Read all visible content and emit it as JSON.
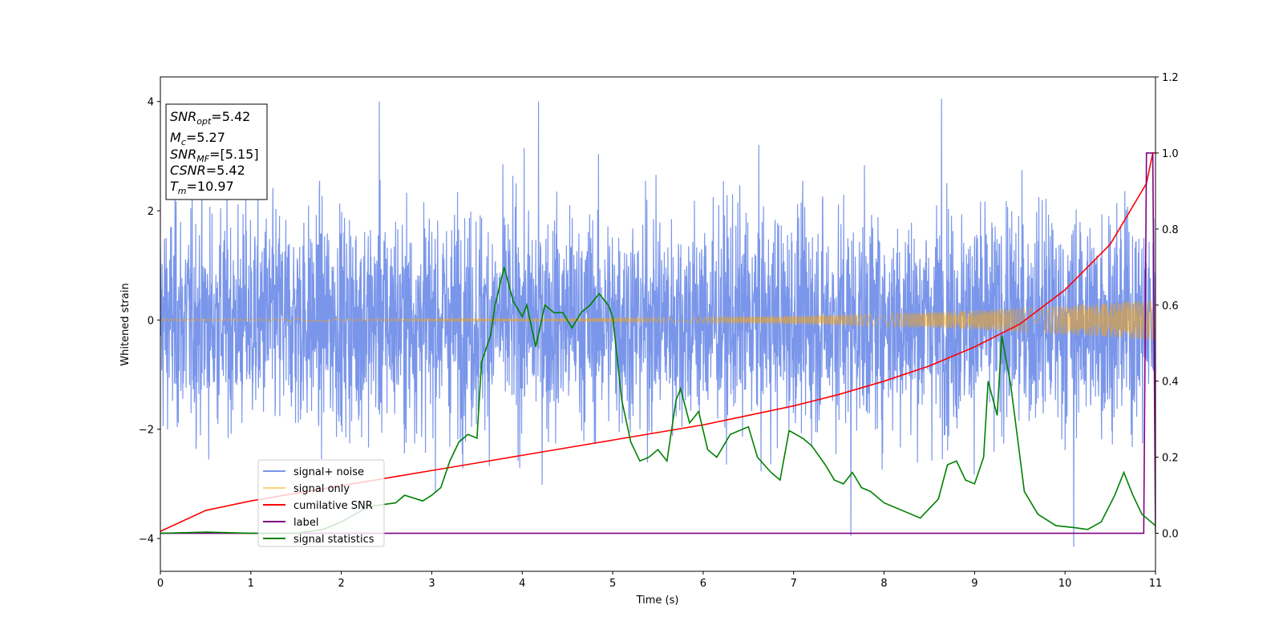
{
  "chart_data": {
    "type": "line",
    "title": "",
    "xlabel": "Time (s)",
    "ylabel": "Whitened strain",
    "xlim": [
      0,
      11
    ],
    "ylim": [
      -4.6,
      4.45
    ],
    "y2lim": [
      -0.1,
      1.2
    ],
    "xticks": [
      0,
      1,
      2,
      3,
      4,
      5,
      6,
      7,
      8,
      9,
      10,
      11
    ],
    "yticks": [
      -4,
      -2,
      0,
      2,
      4
    ],
    "y2ticks": [
      0.0,
      0.2,
      0.4,
      0.6,
      0.8,
      1.0,
      1.2
    ],
    "y2tick_labels": [
      "0.0",
      "0.2",
      "0.4",
      "0.6",
      "0.8",
      "1.0",
      "1.2"
    ],
    "grid": false,
    "legend_position": "lower-left",
    "legend": [
      {
        "name": "signal+ noise",
        "color": "#4169e1",
        "alpha": 0.7
      },
      {
        "name": "signal only",
        "color": "#ffa500",
        "alpha": 0.5
      },
      {
        "name": "cumilative SNR",
        "color": "#ff0000",
        "alpha": 1
      },
      {
        "name": "label",
        "color": "#800080",
        "alpha": 1
      },
      {
        "name": "signal statistics",
        "color": "#008000",
        "alpha": 1
      }
    ],
    "annotation": {
      "snr_opt_base": "SNR",
      "snr_opt_sub": "opt",
      "snr_opt_value": "=5.42",
      "mc_base": "M",
      "mc_sub": "c",
      "mc_value": "=5.27",
      "snr_mf_base": "SNR",
      "snr_mf_sub": "MF",
      "snr_mf_value": "=[5.15]",
      "csnr_base": "CSNR",
      "csnr_value": "=5.42",
      "tm_base": "T",
      "tm_sub": "m",
      "tm_value": "=10.97"
    },
    "series": [
      {
        "name": "signal+ noise",
        "axis": "left",
        "kind": "noise",
        "std": 1.0,
        "t_range": [
          0,
          11
        ],
        "typical_extent": [
          -3.2,
          3.2
        ],
        "peak_values": [
          4.0,
          4.05,
          4.0,
          -3.95,
          -4.15
        ]
      },
      {
        "name": "signal only",
        "axis": "left",
        "kind": "chirp",
        "t_range": [
          0,
          11
        ],
        "amplitude_start": 0.02,
        "amplitude_end": 0.38
      },
      {
        "name": "cumilative SNR",
        "axis": "right",
        "x": [
          0,
          0.5,
          1,
          1.5,
          2,
          2.5,
          3,
          3.5,
          4,
          4.5,
          5,
          5.5,
          6,
          6.5,
          7,
          7.5,
          8,
          8.5,
          9,
          9.5,
          10,
          10.5,
          10.9,
          10.97,
          11
        ],
        "y": [
          0.005,
          0.06,
          0.085,
          0.105,
          0.125,
          0.145,
          0.165,
          0.185,
          0.205,
          0.225,
          0.245,
          0.265,
          0.285,
          0.31,
          0.335,
          0.365,
          0.4,
          0.44,
          0.49,
          0.55,
          0.64,
          0.76,
          0.92,
          1.0,
          1.0
        ]
      },
      {
        "name": "label",
        "axis": "right",
        "x": [
          0,
          10.87,
          10.9,
          10.97,
          11
        ],
        "y": [
          0,
          0,
          1.0,
          1.0,
          0
        ]
      },
      {
        "name": "signal statistics",
        "axis": "right",
        "x": [
          0,
          0.5,
          1,
          1.5,
          1.8,
          2,
          2.3,
          2.6,
          2.7,
          2.9,
          3,
          3.1,
          3.2,
          3.3,
          3.4,
          3.5,
          3.55,
          3.65,
          3.7,
          3.8,
          3.9,
          4.0,
          4.05,
          4.15,
          4.25,
          4.35,
          4.45,
          4.55,
          4.65,
          4.75,
          4.85,
          4.95,
          5.0,
          5.1,
          5.2,
          5.3,
          5.4,
          5.5,
          5.6,
          5.7,
          5.75,
          5.85,
          5.95,
          6.05,
          6.15,
          6.3,
          6.5,
          6.6,
          6.75,
          6.85,
          6.95,
          7.1,
          7.2,
          7.35,
          7.45,
          7.55,
          7.65,
          7.75,
          7.85,
          8.0,
          8.2,
          8.4,
          8.6,
          8.7,
          8.8,
          8.9,
          9.0,
          9.1,
          9.15,
          9.25,
          9.3,
          9.4,
          9.55,
          9.7,
          9.9,
          10.1,
          10.25,
          10.4,
          10.55,
          10.65,
          10.75,
          10.85,
          10.95,
          11
        ],
        "y": [
          0,
          0.003,
          0.0,
          0.0,
          0.01,
          0.03,
          0.07,
          0.08,
          0.1,
          0.085,
          0.1,
          0.12,
          0.19,
          0.24,
          0.26,
          0.25,
          0.45,
          0.52,
          0.6,
          0.7,
          0.61,
          0.57,
          0.6,
          0.49,
          0.6,
          0.58,
          0.58,
          0.54,
          0.58,
          0.6,
          0.63,
          0.6,
          0.57,
          0.35,
          0.24,
          0.19,
          0.2,
          0.22,
          0.19,
          0.35,
          0.38,
          0.29,
          0.32,
          0.22,
          0.2,
          0.26,
          0.28,
          0.2,
          0.16,
          0.14,
          0.27,
          0.25,
          0.23,
          0.18,
          0.14,
          0.13,
          0.16,
          0.12,
          0.11,
          0.08,
          0.06,
          0.04,
          0.09,
          0.18,
          0.19,
          0.14,
          0.13,
          0.2,
          0.4,
          0.31,
          0.52,
          0.39,
          0.11,
          0.05,
          0.02,
          0.015,
          0.01,
          0.03,
          0.1,
          0.16,
          0.1,
          0.05,
          0.03,
          0.02
        ]
      }
    ]
  }
}
